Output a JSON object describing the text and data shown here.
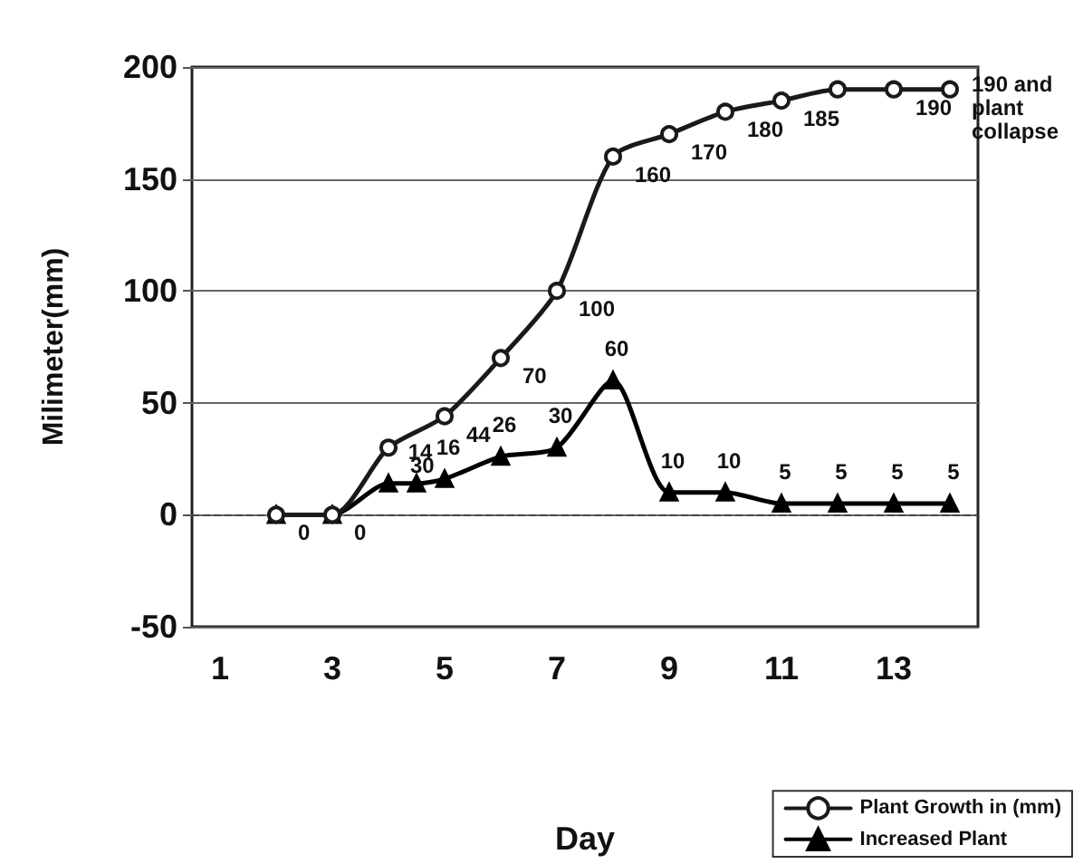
{
  "chart_data": {
    "type": "line",
    "xlabel": "Day",
    "ylabel": "Milimeter(mm)",
    "xlim": [
      0.5,
      14.5
    ],
    "xticks": [
      1,
      3,
      5,
      7,
      9,
      11,
      13
    ],
    "ylim": [
      -50,
      200
    ],
    "yticks": [
      -50,
      0,
      50,
      100,
      150,
      200
    ],
    "grid": "y",
    "legend": "bottom right",
    "line_style": "solid",
    "ref_lines": [
      {
        "axis": "y",
        "value": 0,
        "line_style": "dashed",
        "color": "#444444"
      }
    ],
    "series": [
      {
        "name": "Plant Growth in (mm)",
        "color": "#1a1a1a",
        "marker": "circle",
        "x": [
          2,
          3,
          4,
          5,
          6,
          7,
          8,
          9,
          10,
          11,
          12,
          13,
          14
        ],
        "values": [
          0,
          0,
          30,
          44,
          70,
          100,
          160,
          170,
          180,
          185,
          190,
          190,
          190
        ],
        "value_labels": [
          "0",
          "0",
          "30",
          "44",
          "70",
          "100",
          "160",
          "170",
          "180",
          "185",
          null,
          "190",
          "190 and plant collapse"
        ]
      },
      {
        "name": "Increased Plant",
        "color": "#000000",
        "marker": "triangle",
        "x": [
          2,
          3,
          4,
          4.5,
          5,
          6,
          7,
          8,
          9,
          10,
          11,
          12,
          13,
          14
        ],
        "values": [
          0,
          0,
          14,
          14,
          16,
          26,
          30,
          60,
          10,
          10,
          5,
          5,
          5,
          5
        ],
        "value_labels": [
          null,
          null,
          null,
          "14",
          "16",
          "26",
          "30",
          "60",
          "10",
          "10",
          "5",
          "5",
          "5",
          "5"
        ]
      }
    ]
  }
}
